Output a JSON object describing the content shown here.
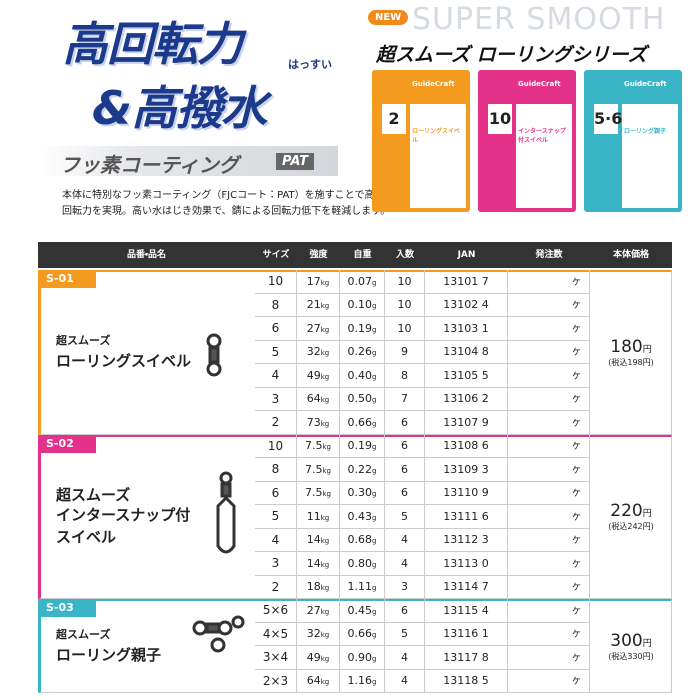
{
  "header": {
    "title_line1": "高回転力",
    "furigana": "はっすい",
    "title_line2": "&高撥水",
    "coating": "フッ素コーティング",
    "coating_badge": "PAT",
    "description": [
      "本体に特別なフッ素コーティング（FJCコート：PAT）を施すことで高い",
      "回転力を実現。高い水はじき効果で、錆による回転力低下を軽減します。"
    ]
  },
  "series": {
    "badge": "NEW",
    "slogan": "SUPER SMOOTH",
    "title": "超スムーズ ローリングシリーズ",
    "brand": "GuideCraft",
    "packages": [
      {
        "size": "2",
        "name": "ローリングスイベル",
        "color": "#f39a1f"
      },
      {
        "size": "10",
        "name": "インタースナップ付スイベル",
        "color": "#e4318a"
      },
      {
        "size": "5·6",
        "name": "ローリング親子",
        "color": "#3ab5c8"
      }
    ]
  },
  "table": {
    "headers": [
      "品番・品名",
      "サイズ",
      "強度",
      "自重",
      "入数",
      "JAN",
      "発注数",
      "本体価格"
    ],
    "units": {
      "strength": "kg",
      "weight": "g",
      "order": "ケ",
      "yen": "円"
    },
    "groups": [
      {
        "code": "S-01",
        "color": "#f39a1f",
        "name": [
          "超スムーズ",
          "ローリングスイベル"
        ],
        "price": "180",
        "tax": "(税込198円)",
        "rows": [
          [
            "10",
            "17",
            "0.07",
            "10",
            "13101 7"
          ],
          [
            "8",
            "21",
            "0.10",
            "10",
            "13102 4"
          ],
          [
            "6",
            "27",
            "0.19",
            "10",
            "13103 1"
          ],
          [
            "5",
            "32",
            "0.26",
            "9",
            "13104 8"
          ],
          [
            "4",
            "49",
            "0.40",
            "8",
            "13105 5"
          ],
          [
            "3",
            "64",
            "0.50",
            "7",
            "13106 2"
          ],
          [
            "2",
            "73",
            "0.66",
            "6",
            "13107 9"
          ]
        ]
      },
      {
        "code": "S-02",
        "color": "#e4318a",
        "name": [
          "超スムーズ",
          "インタースナップ付",
          "スイベル"
        ],
        "price": "220",
        "tax": "(税込242円)",
        "rows": [
          [
            "10",
            "7.5",
            "0.19",
            "6",
            "13108 6"
          ],
          [
            "8",
            "7.5",
            "0.22",
            "6",
            "13109 3"
          ],
          [
            "6",
            "7.5",
            "0.30",
            "6",
            "13110 9"
          ],
          [
            "5",
            "11",
            "0.43",
            "5",
            "13111 6"
          ],
          [
            "4",
            "14",
            "0.68",
            "4",
            "13112 3"
          ],
          [
            "3",
            "14",
            "0.80",
            "4",
            "13113 0"
          ],
          [
            "2",
            "18",
            "1.11",
            "3",
            "13114 7"
          ]
        ]
      },
      {
        "code": "S-03",
        "color": "#3ab5c8",
        "name": [
          "超スムーズ",
          "ローリング親子"
        ],
        "price": "300",
        "tax": "(税込330円)",
        "rows": [
          [
            "5×6",
            "27",
            "0.45",
            "6",
            "13115 4"
          ],
          [
            "4×5",
            "32",
            "0.66",
            "5",
            "13116 1"
          ],
          [
            "3×4",
            "49",
            "0.90",
            "4",
            "13117 8"
          ],
          [
            "2×3",
            "64",
            "1.16",
            "4",
            "13118 5"
          ]
        ]
      }
    ]
  }
}
